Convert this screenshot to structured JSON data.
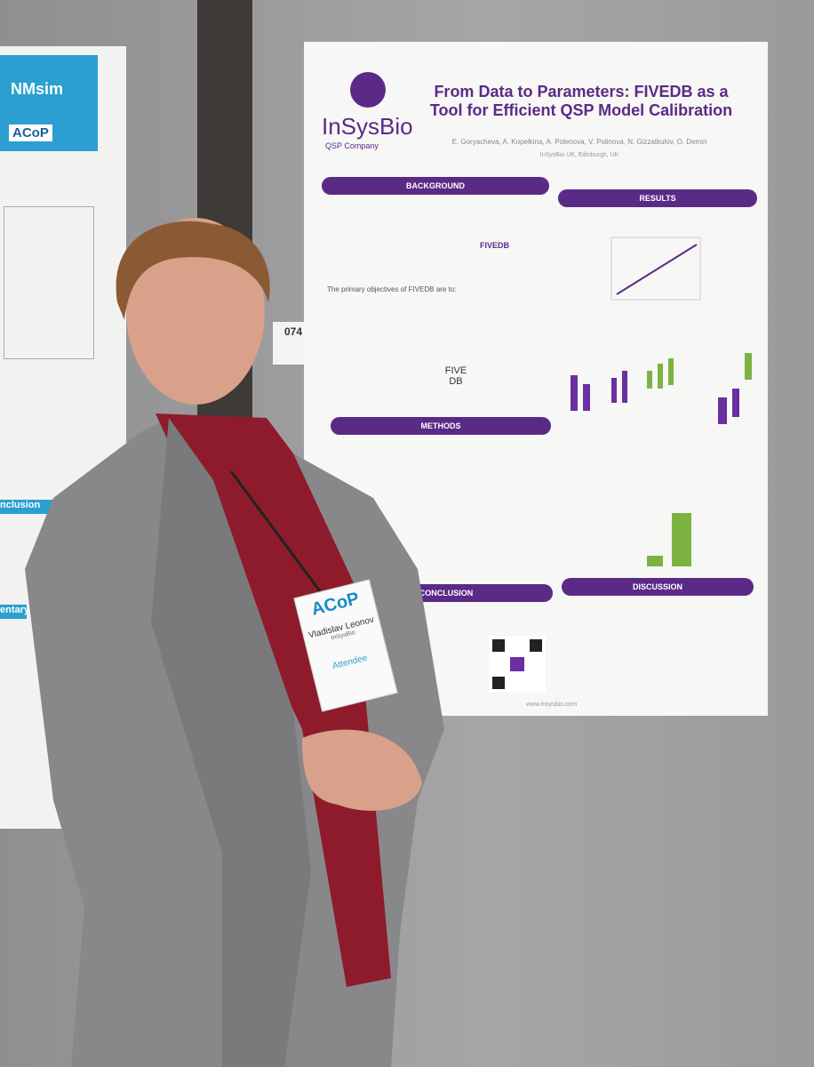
{
  "poster_number": "074",
  "left_poster": {
    "logo": "NMsim",
    "badge": "ACoP",
    "heading": "nclusion",
    "heading2": "entary"
  },
  "poster": {
    "logo": "InSysBio",
    "logo_sub": "QSP Company",
    "title": "From Data to Parameters: FIVEDB as a Tool for Efficient QSP Model Calibration",
    "authors": "E. Goryacheva, A. Kopelkina, A. Polenova, V. Polinova, N. Gizzatkulov, O. Demin",
    "affiliation": "InSysBio UK, Edinburgh, UK",
    "sections": [
      "BACKGROUND",
      "RESULTS",
      "METHODS",
      "CONCLUSION",
      "DISCUSSION"
    ],
    "hub": "FIVEDB",
    "db": "FIVE DB",
    "objectives": "The primary objectives of FIVEDB are to:",
    "website": "www.insysbio.com"
  },
  "badge": {
    "event": "ACoP",
    "name": "Vladislav Leonov",
    "org": "InSysBio",
    "role": "Attendee"
  }
}
